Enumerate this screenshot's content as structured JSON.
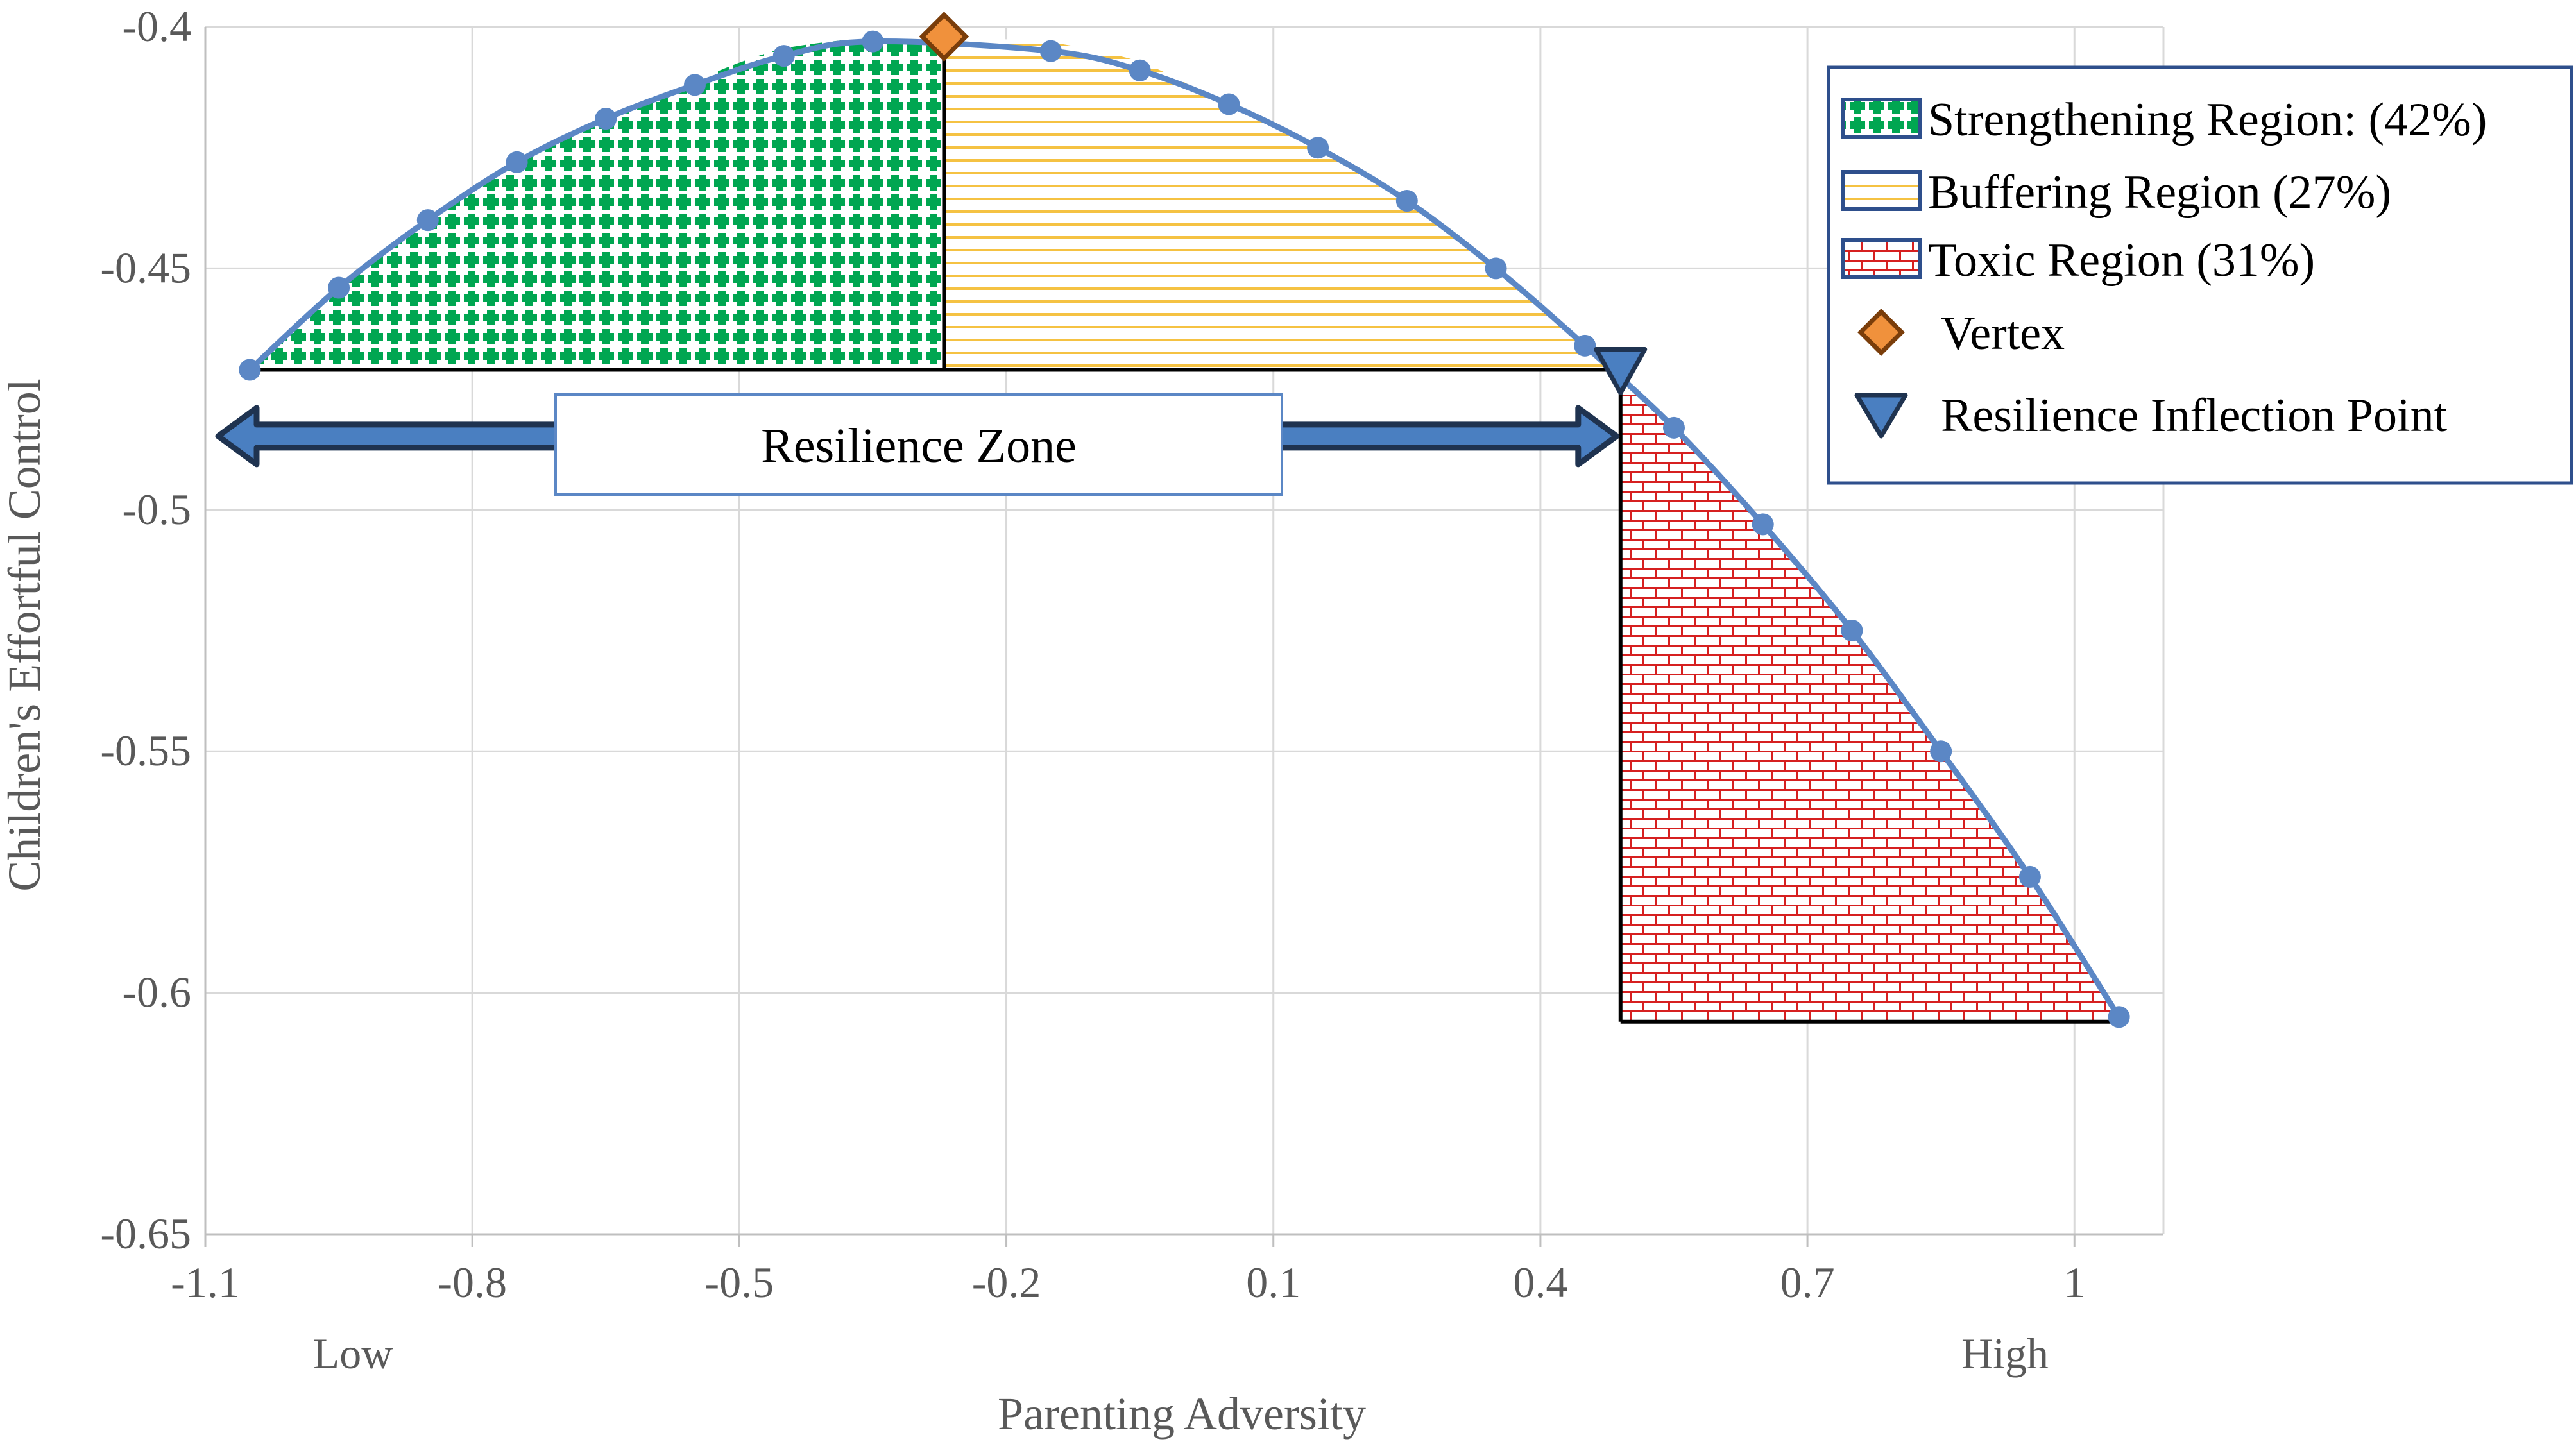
{
  "chart_data": {
    "type": "line",
    "xlabel": "Parenting Adversity",
    "ylabel": "Children's Effortful Control",
    "xlim": [
      -1.1,
      1.1
    ],
    "ylim": [
      -0.65,
      -0.4
    ],
    "x_ticks": [
      -1.1,
      -0.8,
      -0.5,
      -0.2,
      0.1,
      0.4,
      0.7,
      1.0
    ],
    "x_tick_labels": [
      "-1.1",
      "-0.8",
      "-0.5",
      "-0.2",
      "0.1",
      "0.4",
      "0.7",
      "1"
    ],
    "y_ticks": [
      -0.4,
      -0.45,
      -0.5,
      -0.55,
      -0.6,
      -0.65
    ],
    "y_tick_labels": [
      "-0.4",
      "-0.45",
      "-0.5",
      "-0.55",
      "-0.6",
      "-0.65"
    ],
    "x_anchor_labels": {
      "low": "Low",
      "high": "High"
    },
    "grid": true,
    "legend_position": "top-right",
    "series": [
      {
        "points": [
          {
            "x": -1.05,
            "y": -0.471
          },
          {
            "x": -0.95,
            "y": -0.454
          },
          {
            "x": -0.85,
            "y": -0.44
          },
          {
            "x": -0.75,
            "y": -0.428
          },
          {
            "x": -0.65,
            "y": -0.419
          },
          {
            "x": -0.55,
            "y": -0.412
          },
          {
            "x": -0.45,
            "y": -0.406
          },
          {
            "x": -0.35,
            "y": -0.403
          },
          {
            "x": -0.15,
            "y": -0.405
          },
          {
            "x": -0.05,
            "y": -0.409
          },
          {
            "x": 0.05,
            "y": -0.416
          },
          {
            "x": 0.15,
            "y": -0.425
          },
          {
            "x": 0.25,
            "y": -0.436
          },
          {
            "x": 0.35,
            "y": -0.45
          },
          {
            "x": 0.45,
            "y": -0.466
          },
          {
            "x": 0.55,
            "y": -0.483
          },
          {
            "x": 0.65,
            "y": -0.503
          },
          {
            "x": 0.75,
            "y": -0.525
          },
          {
            "x": 0.85,
            "y": -0.55
          },
          {
            "x": 0.95,
            "y": -0.576
          },
          {
            "x": 1.05,
            "y": -0.605
          }
        ]
      }
    ],
    "vertex": {
      "x": -0.27,
      "y": -0.402
    },
    "inflection_point": {
      "x": 0.49,
      "y": -0.471
    },
    "regions": [
      {
        "key": "strengthening",
        "label": "Strengthening Region: (42%)",
        "x_from": -1.05,
        "x_to": -0.27,
        "baseline": -0.471,
        "color": "#00a651"
      },
      {
        "key": "buffering",
        "label": "Buffering Region (27%)",
        "x_from": -0.27,
        "x_to": 0.49,
        "baseline": -0.471,
        "color": "#f5c242"
      },
      {
        "key": "toxic",
        "label": "Toxic Region (31%)",
        "x_from": 0.49,
        "x_to": 1.05,
        "baseline": -0.606,
        "color": "#d62020"
      }
    ],
    "legend": [
      {
        "key": "strengthening",
        "label": "Strengthening Region: (42%)"
      },
      {
        "key": "buffering",
        "label": "Buffering Region (27%)"
      },
      {
        "key": "toxic",
        "label": "Toxic Region (31%)"
      },
      {
        "key": "vertex",
        "label": "Vertex"
      },
      {
        "key": "inflection",
        "label": "Resilience Inflection Point"
      }
    ],
    "annotation": {
      "label": "Resilience Zone",
      "arrow_from_x": -1.1,
      "arrow_to_x": 0.49,
      "y": -0.485
    },
    "colors": {
      "line": "#5b87c5",
      "marker": "#5b87c5",
      "vertex_fill": "#f0913c",
      "vertex_stroke": "#7a3d0a",
      "inflection_fill": "#4a7fc1",
      "inflection_stroke": "#1f3350",
      "arrow_fill": "#4a7fc1",
      "arrow_stroke": "#1f3350",
      "grid": "#d9d9d9",
      "axis": "#bfbfbf",
      "legend_border": "#2e4f8c"
    }
  }
}
